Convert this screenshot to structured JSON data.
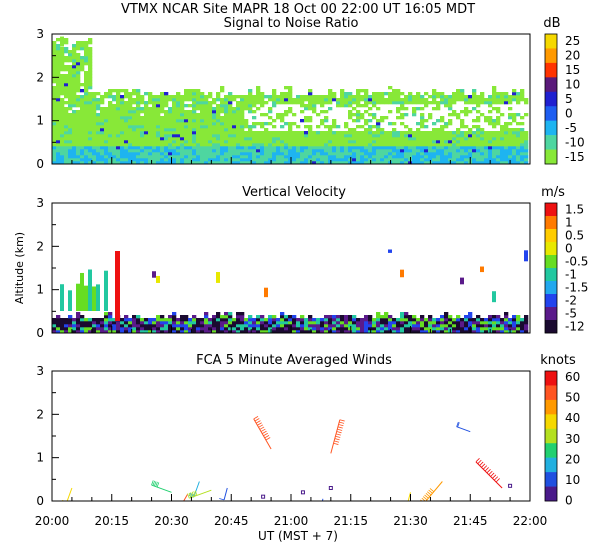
{
  "header": {
    "title": "VTMX  NCAR Site  MAPR 18 Oct 00  22:00 UT  16:05  MDT"
  },
  "chart_data": [
    {
      "type": "heatmap",
      "title": "Signal to Noise Ratio",
      "ylabel": "",
      "unit": "dB",
      "ylim": [
        0,
        3
      ],
      "yticks": [
        "0",
        "1",
        "2",
        "3"
      ],
      "colorbar": {
        "labels": [
          "25",
          "20",
          "15",
          "10",
          "5",
          "0",
          "-5",
          "-10",
          "-15"
        ],
        "colors": [
          "#f5d800",
          "#ff9900",
          "#ff3300",
          "#5a1a7a",
          "#2020d0",
          "#1e5ef0",
          "#1eb4f0",
          "#4ed6a0",
          "#88e838"
        ]
      }
    },
    {
      "type": "heatmap",
      "title": "Vertical Velocity",
      "ylabel": "Altitude (km)",
      "unit": "m/s",
      "ylim": [
        0,
        3
      ],
      "yticks": [
        "0",
        "1",
        "2",
        "3"
      ],
      "colorbar": {
        "labels": [
          "1.5",
          "1",
          "0.5",
          "0",
          "-0.5",
          "-1",
          "-1.5",
          "-2",
          "-5",
          "-12"
        ],
        "colors": [
          "#ee1111",
          "#ff7a00",
          "#ffcc00",
          "#e8e800",
          "#66dd22",
          "#22c8a0",
          "#22a8ee",
          "#2244ee",
          "#5a1a8a",
          "#1a0a30"
        ]
      }
    },
    {
      "type": "scatter",
      "title": "FCA 5 Minute Averaged Winds",
      "ylabel": "",
      "unit": "knots",
      "ylim": [
        0,
        3
      ],
      "yticks": [
        "0",
        "1",
        "2",
        "3"
      ],
      "colorbar": {
        "labels": [
          "60",
          "50",
          "40",
          "30",
          "20",
          "10",
          "0"
        ],
        "colors": [
          "#ee1111",
          "#ff5522",
          "#ff9900",
          "#f5d800",
          "#b4e020",
          "#22d070",
          "#22b0e0",
          "#2050e0",
          "#4a1a8a"
        ]
      },
      "xlabel": "UT   (MST + 7)",
      "xticks": [
        "20:00",
        "20:15",
        "20:30",
        "20:45",
        "21:00",
        "21:15",
        "21:30",
        "21:45",
        "22:00"
      ],
      "barbs": [
        {
          "t": "20:05",
          "alt": 0.3,
          "dir": 200,
          "speed": 35
        },
        {
          "t": "20:30",
          "alt": 0.2,
          "dir": 290,
          "speed": 25
        },
        {
          "t": "20:34",
          "alt": 0.15,
          "dir": 210,
          "speed": 55
        },
        {
          "t": "20:37",
          "alt": 0.45,
          "dir": 200,
          "speed": 15
        },
        {
          "t": "20:40",
          "alt": 0.25,
          "dir": 250,
          "speed": 30
        },
        {
          "t": "20:44",
          "alt": 0.3,
          "dir": 195,
          "speed": 5
        },
        {
          "t": "20:53",
          "alt": 0.1,
          "dir": 0,
          "speed": 0
        },
        {
          "t": "20:55",
          "alt": 1.2,
          "dir": 330,
          "speed": 55
        },
        {
          "t": "21:03",
          "alt": 0.2,
          "dir": 0,
          "speed": 0
        },
        {
          "t": "21:08",
          "alt": 0.05,
          "dir": 190,
          "speed": 5
        },
        {
          "t": "21:10",
          "alt": 1.1,
          "dir": 15,
          "speed": 55
        },
        {
          "t": "21:10",
          "alt": 0.3,
          "dir": 0,
          "speed": 0
        },
        {
          "t": "21:30",
          "alt": 0.2,
          "dir": 195,
          "speed": 35
        },
        {
          "t": "21:38",
          "alt": 0.45,
          "dir": 220,
          "speed": 45
        },
        {
          "t": "21:45",
          "alt": 1.6,
          "dir": 290,
          "speed": 10
        },
        {
          "t": "21:53",
          "alt": 0.3,
          "dir": 315,
          "speed": 60
        },
        {
          "t": "21:55",
          "alt": 0.35,
          "dir": 0,
          "speed": 0
        }
      ]
    }
  ]
}
